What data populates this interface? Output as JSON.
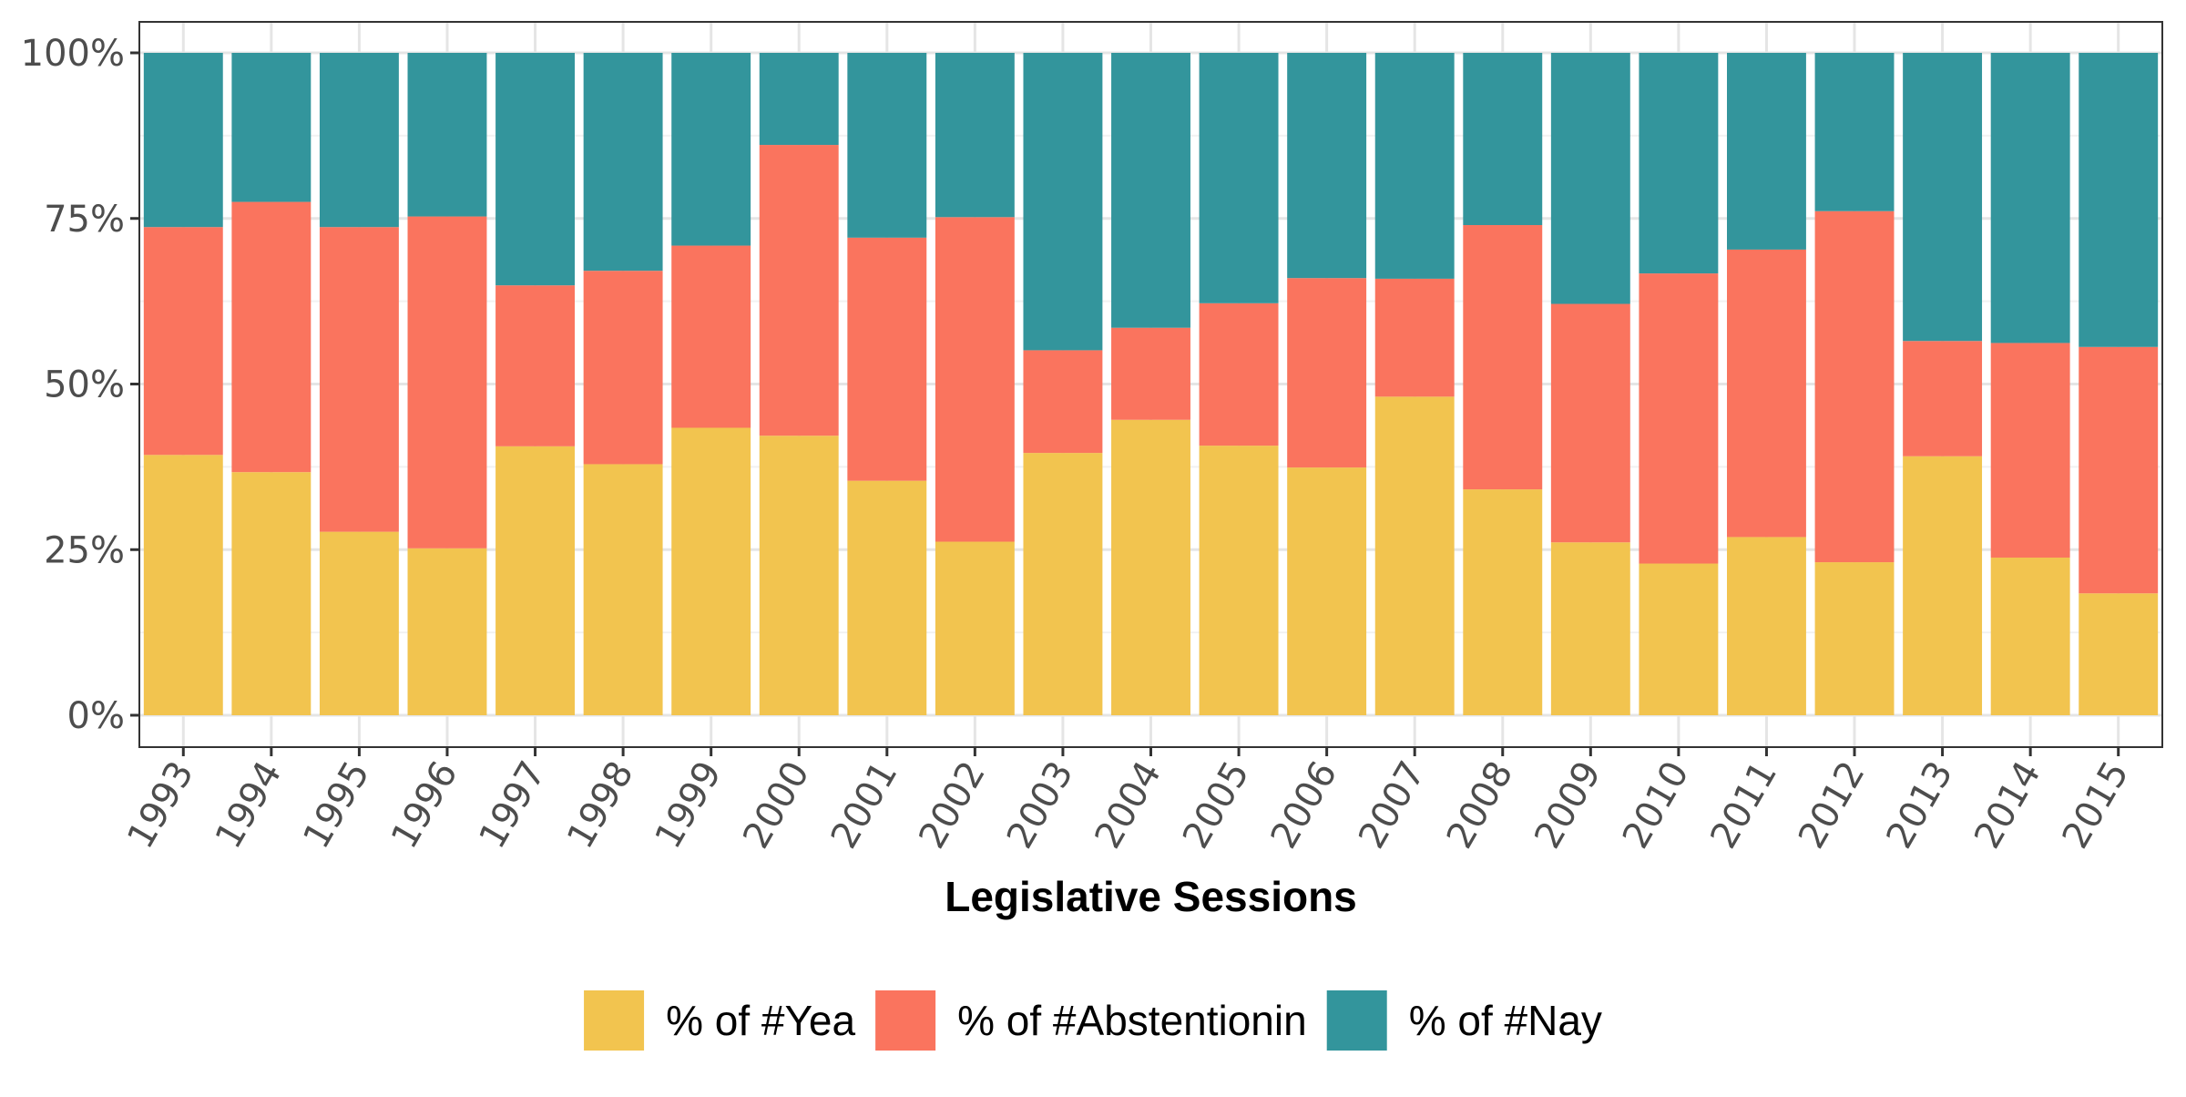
{
  "chart_data": {
    "type": "bar",
    "stacked": true,
    "percent": true,
    "title": "",
    "xlabel": "Legislative Sessions",
    "ylabel": "",
    "ylim": [
      0,
      100
    ],
    "yticks": [
      "0%",
      "25%",
      "50%",
      "75%",
      "100%"
    ],
    "grid": true,
    "legend_position": "bottom",
    "categories": [
      "1993",
      "1994",
      "1995",
      "1996",
      "1997",
      "1998",
      "1999",
      "2000",
      "2001",
      "2002",
      "2003",
      "2004",
      "2005",
      "2006",
      "2007",
      "2008",
      "2009",
      "2010",
      "2011",
      "2012",
      "2013",
      "2014",
      "2015"
    ],
    "series": [
      {
        "name": "% of #Yea",
        "color": "#F2C44F",
        "values": [
          39.3,
          36.7,
          27.7,
          25.2,
          40.6,
          37.9,
          43.4,
          42.2,
          35.4,
          26.2,
          39.6,
          44.6,
          40.7,
          37.4,
          48.1,
          34.1,
          26.1,
          22.9,
          26.9,
          23.1,
          39.1,
          23.8,
          18.4
        ]
      },
      {
        "name": "% of #Abstentionin",
        "color": "#FA745E",
        "values": [
          34.4,
          40.8,
          46.0,
          50.1,
          24.3,
          29.2,
          27.5,
          43.9,
          36.7,
          49.0,
          15.5,
          13.9,
          21.5,
          28.6,
          17.8,
          39.9,
          36.0,
          43.8,
          43.4,
          53.0,
          17.4,
          32.4,
          37.2
        ]
      },
      {
        "name": "% of #Nay",
        "color": "#33959C",
        "values": [
          26.3,
          22.5,
          26.3,
          24.7,
          35.1,
          32.9,
          29.1,
          13.9,
          27.9,
          24.8,
          44.9,
          41.5,
          37.8,
          34.0,
          34.1,
          26.0,
          37.9,
          33.3,
          29.7,
          23.9,
          43.5,
          43.8,
          44.4
        ]
      }
    ]
  },
  "colors": {
    "panel_border": "#333333",
    "grid_major": "#e5e5e5",
    "grid_minor": "#f2f2f2",
    "axis_ticks": "#333333"
  }
}
